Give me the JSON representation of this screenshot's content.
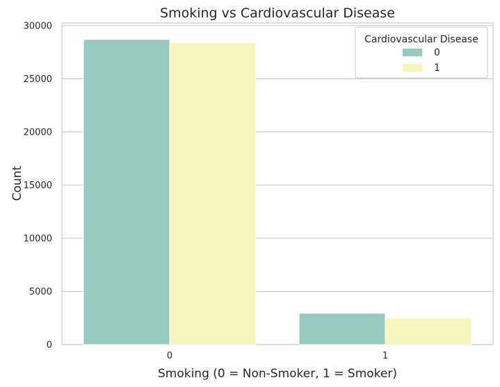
{
  "chart_data": {
    "type": "bar",
    "title": "Smoking vs Cardiovascular Disease",
    "xlabel": "Smoking (0 = Non-Smoker, 1 = Smoker)",
    "ylabel": "Count",
    "categories": [
      "0",
      "1"
    ],
    "series": [
      {
        "name": "0",
        "values": [
          28700,
          2950
        ],
        "color": "#96cabf"
      },
      {
        "name": "1",
        "values": [
          28400,
          2500
        ],
        "color": "#f6f5bb"
      }
    ],
    "ylim": [
      0,
      30250
    ],
    "yticks": [
      0,
      5000,
      10000,
      15000,
      20000,
      25000,
      30000
    ],
    "grid": "horizontal",
    "legend": {
      "title": "Cardiovascular Disease",
      "position": "top-right"
    }
  }
}
